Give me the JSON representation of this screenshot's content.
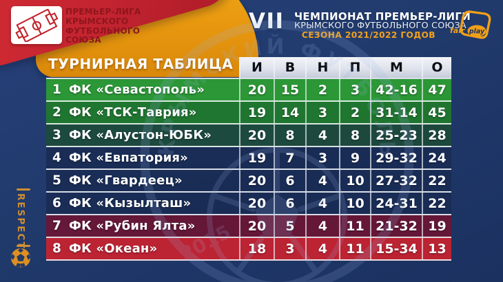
{
  "colors": {
    "background": "#203A6C",
    "panel_orange": "#E8980F",
    "band_red": "#C32430",
    "caption_red": "#8F161B",
    "season_orange": "#F2A11C",
    "zone_green_bright": "#2DA62D",
    "zone_green": "#1F8026",
    "zone_green_dark": "#1D4D36",
    "zone_navy": "#182B52",
    "zone_maroon": "#701331",
    "zone_red": "#D5202B",
    "watermark_blue": "#9DB8E8",
    "respect_orange": "#CF8F33"
  },
  "league_badge": {
    "caption_lines": [
      "ПРЕМЬЕР-ЛИГА",
      "КРЫМСКОГО",
      "ФУТБОЛЬНОГО",
      "СОЮЗА"
    ]
  },
  "header": {
    "edition_numeral": "VII",
    "title_line1": "ЧЕМПИОНАТ ПРЕМЬЕР-ЛИГИ",
    "title_line2": "КРЫМСКОГО ФУТБОЛЬНОГО СОЮЗА",
    "season_line": "СЕЗОНА 2021/2022 ГОДОВ"
  },
  "fairplay": {
    "fair": "fair",
    "play": "play"
  },
  "respect": {
    "label": "RESPECT"
  },
  "watermark": {
    "circle_text": "КРЫМСКИЙ ФУТБОЛЬНЫЙ СОЮЗ",
    "year": "2015"
  },
  "chart_data": {
    "type": "table",
    "title": "ТУРНИРНАЯ ТАБЛИЦА",
    "columns": [
      "И",
      "В",
      "Н",
      "П",
      "М",
      "О"
    ],
    "rows": [
      {
        "position": "1",
        "team": "ФК «Севастополь»",
        "values": [
          "20",
          "15",
          "2",
          "3",
          "42-16",
          "47"
        ],
        "zone": "green_bright"
      },
      {
        "position": "2",
        "team": "ФК «ТСК-Таврия»",
        "values": [
          "19",
          "14",
          "3",
          "2",
          "31-14",
          "45"
        ],
        "zone": "green"
      },
      {
        "position": "3",
        "team": "ФК «Алустон-ЮБК»",
        "values": [
          "20",
          "8",
          "4",
          "8",
          "25-23",
          "28"
        ],
        "zone": "green_dark"
      },
      {
        "position": "4",
        "team": "ФК «Евпатория»",
        "values": [
          "19",
          "7",
          "3",
          "9",
          "29-32",
          "24"
        ],
        "zone": "navy"
      },
      {
        "position": "5",
        "team": "ФК «Гвардеец»",
        "values": [
          "20",
          "6",
          "4",
          "10",
          "27-32",
          "22"
        ],
        "zone": "navy"
      },
      {
        "position": "6",
        "team": "ФК «Кызылташ»",
        "values": [
          "20",
          "6",
          "4",
          "10",
          "24-31",
          "22"
        ],
        "zone": "navy"
      },
      {
        "position": "7",
        "team": "ФК «Рубин Ялта»",
        "values": [
          "20",
          "5",
          "4",
          "11",
          "21-32",
          "19"
        ],
        "zone": "maroon"
      },
      {
        "position": "8",
        "team": "ФК «Океан»",
        "values": [
          "18",
          "3",
          "4",
          "11",
          "15-34",
          "13"
        ],
        "zone": "red"
      }
    ]
  }
}
